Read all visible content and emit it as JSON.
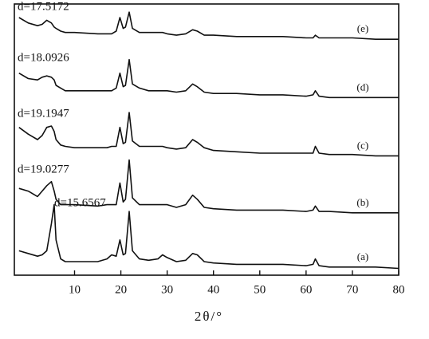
{
  "chart_data": {
    "type": "line",
    "x_label": "2θ/°",
    "xlim": [
      -3,
      80
    ],
    "xticks": [
      10,
      20,
      30,
      40,
      50,
      60,
      70,
      80
    ],
    "ylim": [
      0,
      100
    ],
    "x": [
      -2,
      0,
      2,
      3,
      4,
      5,
      5.6,
      6,
      7,
      8,
      10,
      15,
      17,
      18,
      19,
      19.8,
      20.5,
      21,
      21.8,
      22.5,
      24,
      26,
      28,
      29,
      30,
      32,
      34,
      35.5,
      36.5,
      38,
      40,
      45,
      50,
      55,
      60,
      61.5,
      62,
      62.8,
      65,
      70,
      75,
      80
    ],
    "series": [
      {
        "name": "(a)",
        "color": "#111111",
        "values": [
          9,
          8,
          7,
          7.5,
          9,
          19,
          26,
          13,
          6,
          5,
          5,
          5,
          6,
          7.5,
          7,
          13,
          7.5,
          8,
          23.5,
          9,
          6,
          5.5,
          6,
          7.5,
          6.5,
          5,
          5.5,
          8,
          7.5,
          5,
          4.5,
          4,
          4,
          4,
          3.5,
          4,
          6,
          3.5,
          3,
          3,
          3,
          2.5
        ]
      },
      {
        "name": "(b)",
        "color": "#111111",
        "values": [
          32,
          31,
          29,
          31,
          33,
          34.5,
          31,
          28,
          26,
          26,
          26,
          25.5,
          26,
          26,
          26,
          34,
          27,
          28,
          42.5,
          28.5,
          26,
          26,
          26,
          26,
          26,
          25,
          26,
          29.5,
          28,
          25,
          24.5,
          24,
          24,
          24,
          23.5,
          24,
          25.5,
          23.5,
          23.5,
          23,
          23,
          23
        ]
      },
      {
        "name": "(c)",
        "color": "#111111",
        "values": [
          54.5,
          52,
          50,
          51.5,
          54.5,
          55,
          53,
          50,
          48,
          47.5,
          47,
          47,
          47,
          47.5,
          47.5,
          54.5,
          48.5,
          49,
          60,
          49.5,
          47.5,
          47.5,
          47.5,
          47.5,
          47,
          46.5,
          47,
          50,
          49,
          47,
          46,
          45.5,
          45,
          45,
          45,
          45,
          47.5,
          45,
          44.5,
          44.5,
          44,
          44
        ]
      },
      {
        "name": "(d)",
        "color": "#111111",
        "values": [
          74.5,
          72.5,
          72,
          73,
          73.5,
          73,
          72,
          70,
          69,
          68,
          68,
          68,
          68,
          68,
          69,
          74.5,
          69.5,
          70,
          79.5,
          70.5,
          69,
          68,
          68,
          68,
          68,
          67.5,
          68,
          70.5,
          69.5,
          67.5,
          67,
          67,
          66.5,
          66.5,
          66,
          66.5,
          68,
          66,
          65.5,
          65.5,
          65.5,
          65.5
        ]
      },
      {
        "name": "(e)",
        "color": "#111111",
        "values": [
          95,
          93,
          92,
          92.5,
          94,
          93,
          91.5,
          91,
          90,
          89.5,
          89.5,
          89,
          89,
          89,
          90,
          95,
          91,
          91.5,
          97,
          91,
          89.5,
          89.5,
          89.5,
          89.5,
          89,
          88.5,
          89,
          90.5,
          90,
          88.5,
          88.5,
          88,
          88,
          88,
          87.5,
          87.5,
          88.5,
          87.5,
          87.5,
          87.5,
          87,
          87
        ]
      }
    ],
    "annotations": [
      "d=15.6567",
      "d=19.0277",
      "d=19.1947",
      "d=18.0926",
      "d=17.5172"
    ]
  }
}
